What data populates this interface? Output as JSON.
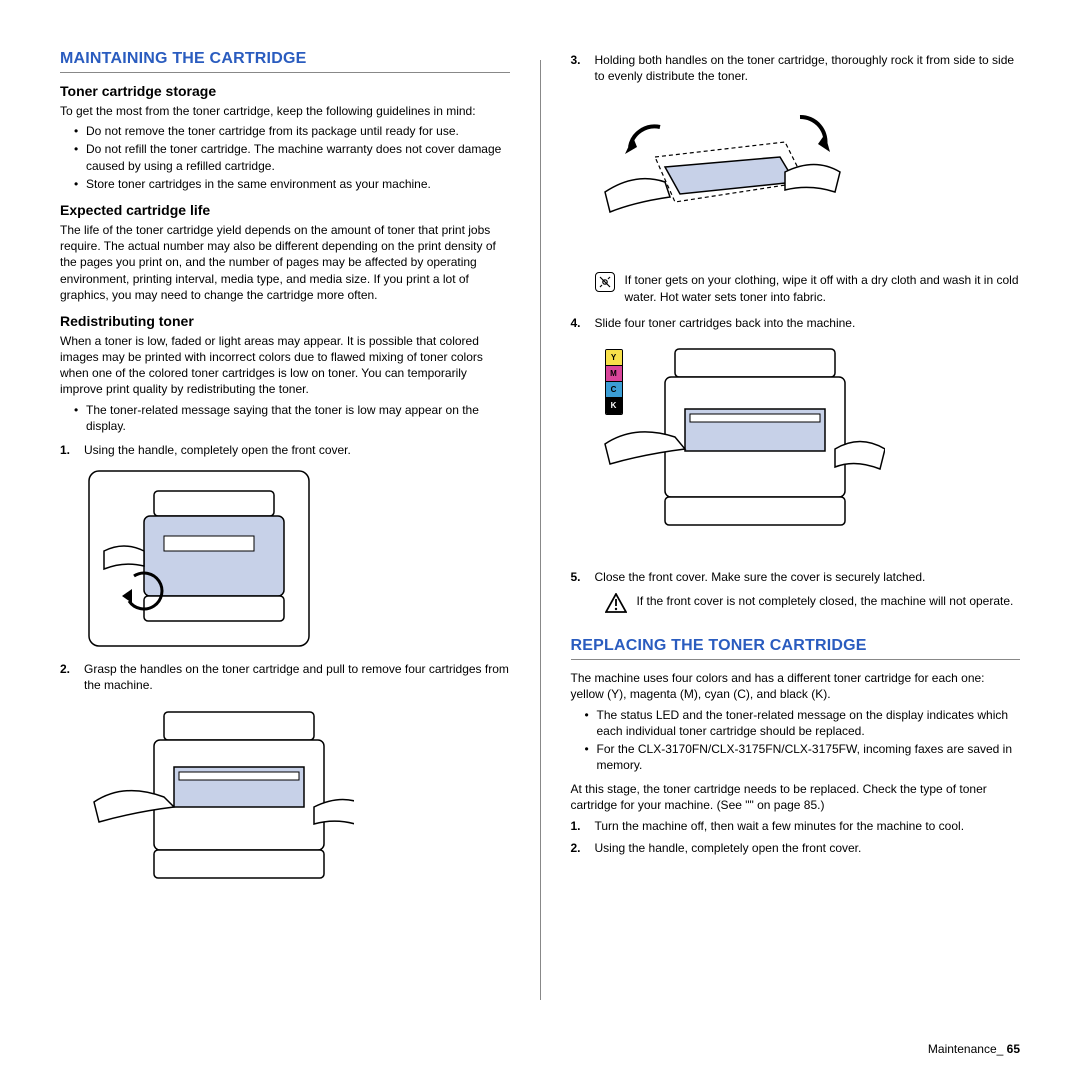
{
  "colors": {
    "heading": "#2a5cbf",
    "text": "#000000",
    "rule": "#888888",
    "printer_body": "#c7d1e8"
  },
  "left": {
    "section1_title": "MAINTAINING THE CARTRIDGE",
    "sub1": "Toner cartridge storage",
    "sub1_intro": "To get the most from the toner cartridge, keep the following guidelines in mind:",
    "sub1_bullets": [
      "Do not remove the toner cartridge from its package until ready for use.",
      "Do not refill the toner cartridge. The machine warranty does not cover damage caused by using a refilled cartridge.",
      "Store toner cartridges in the same environment as your machine."
    ],
    "sub2": "Expected cartridge life",
    "sub2_para": "The life of the toner cartridge yield depends on the amount of toner that print jobs require. The actual number may also be different depending on the print density of the pages you print on, and the number of pages may be affected by operating environment, printing interval, media type, and media size. If you print a lot of graphics, you may need to change the cartridge more often.",
    "sub3": "Redistributing toner",
    "sub3_para": "When a toner is low, faded or light areas may appear. It is possible that colored images may be printed with incorrect colors due to flawed mixing of toner colors when one of the colored toner cartridges is low on toner. You can temporarily improve print quality by redistributing the toner.",
    "sub3_bullets": [
      "The toner-related message saying that the toner is low may appear on the display."
    ],
    "step1": "Using the handle, completely open the front cover.",
    "step2": "Grasp the handles on the toner cartridge and pull to remove four cartridges from the machine."
  },
  "right": {
    "step3": "Holding both handles on the toner cartridge, thoroughly rock it from side to side to evenly distribute the toner.",
    "note1": "If toner gets on your clothing, wipe it off with a dry cloth and wash it in cold water. Hot water sets toner into fabric.",
    "step4": "Slide four toner cartridges back into the machine.",
    "step5": "Close the front cover. Make sure the cover is securely latched.",
    "warn1": "If the front cover is not completely closed, the machine will not operate.",
    "section2_title": "REPLACING THE TONER CARTRIDGE",
    "s2_para1": "The machine uses four colors and has a different toner cartridge for each one: yellow (Y), magenta (M), cyan (C), and black (K).",
    "s2_bullets": [
      "The status LED and the toner-related message on the display indicates which each individual toner cartridge should be replaced.",
      "For the CLX-3170FN/CLX-3175FN/CLX-3175FW, incoming faxes are saved in memory."
    ],
    "s2_para2": "At this stage, the toner cartridge needs to be replaced. Check the type of toner cartridge for your machine. (See \"\" on page 85.)",
    "s2_step1": "Turn the machine off, then wait a few minutes for the machine to cool.",
    "s2_step2": "Using the handle, completely open the front cover.",
    "toner_colors": [
      {
        "label": "Y",
        "color": "#f8e04a"
      },
      {
        "label": "M",
        "color": "#d9459a"
      },
      {
        "label": "C",
        "color": "#3b9ed6"
      },
      {
        "label": "K",
        "color": "#000000",
        "text": "#ffffff"
      }
    ]
  },
  "footer": {
    "label": "Maintenance_",
    "page": "65"
  }
}
